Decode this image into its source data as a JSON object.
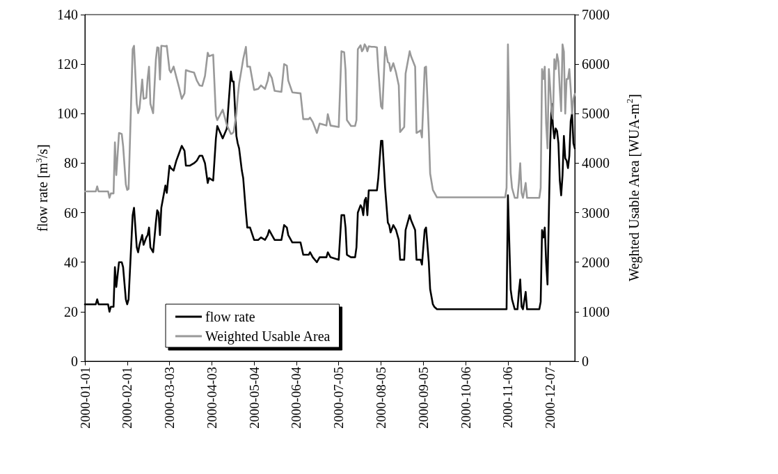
{
  "chart_data": {
    "type": "line",
    "ylabel": "flow rate [m$^{3}$/s]",
    "y2label": "Weghted Usable Area [WUA-m$^{2}$]",
    "x": [
      "2000-01-01",
      "2000-01-09",
      "2000-01-10",
      "2000-01-11",
      "2000-01-18",
      "2000-01-19",
      "2000-01-20",
      "2000-01-22",
      "2000-01-23",
      "2000-01-24",
      "2000-01-26",
      "2000-01-28",
      "2000-01-29",
      "2000-01-31",
      "2000-02-01",
      "2000-02-02",
      "2000-02-05",
      "2000-02-06",
      "2000-02-08",
      "2000-02-09",
      "2000-02-10",
      "2000-02-12",
      "2000-02-13",
      "2000-02-15",
      "2000-02-16",
      "2000-02-17",
      "2000-02-18",
      "2000-02-20",
      "2000-02-22",
      "2000-02-23",
      "2000-02-24",
      "2000-02-25",
      "2000-02-26",
      "2000-02-29",
      "2000-03-01",
      "2000-03-03",
      "2000-03-04",
      "2000-03-06",
      "2000-03-08",
      "2000-03-10",
      "2000-03-12",
      "2000-03-14",
      "2000-03-15",
      "2000-03-18",
      "2000-03-21",
      "2000-03-23",
      "2000-03-25",
      "2000-03-27",
      "2000-03-29",
      "2000-03-31",
      "2000-04-01",
      "2000-04-04",
      "2000-04-06",
      "2000-04-07",
      "2000-04-11",
      "2000-04-14",
      "2000-04-17",
      "2000-04-18",
      "2000-04-19",
      "2000-04-21",
      "2000-04-22",
      "2000-04-23",
      "2000-04-25",
      "2000-04-26",
      "2000-04-28",
      "2000-04-29",
      "2000-05-01",
      "2000-05-04",
      "2000-05-07",
      "2000-05-09",
      "2000-05-12",
      "2000-05-14",
      "2000-05-15",
      "2000-05-17",
      "2000-05-19",
      "2000-05-24",
      "2000-05-26",
      "2000-05-28",
      "2000-05-29",
      "2000-06-01",
      "2000-06-07",
      "2000-06-09",
      "2000-06-13",
      "2000-06-14",
      "2000-06-16",
      "2000-06-19",
      "2000-06-21",
      "2000-06-26",
      "2000-06-27",
      "2000-06-29",
      "2000-07-05",
      "2000-07-07",
      "2000-07-09",
      "2000-07-10",
      "2000-07-11",
      "2000-07-14",
      "2000-07-17",
      "2000-07-18",
      "2000-07-19",
      "2000-07-21",
      "2000-07-22",
      "2000-07-23",
      "2000-07-24",
      "2000-07-25",
      "2000-07-26",
      "2000-07-27",
      "2000-07-29",
      "2000-07-31",
      "2000-08-02",
      "2000-08-03",
      "2000-08-05",
      "2000-08-06",
      "2000-08-08",
      "2000-08-10",
      "2000-08-11",
      "2000-08-12",
      "2000-08-14",
      "2000-08-16",
      "2000-08-18",
      "2000-08-19",
      "2000-08-22",
      "2000-08-23",
      "2000-08-26",
      "2000-08-27",
      "2000-08-30",
      "2000-08-31",
      "2000-09-03",
      "2000-09-04",
      "2000-09-06",
      "2000-09-07",
      "2000-09-09",
      "2000-09-10",
      "2000-09-12",
      "2000-09-13",
      "2000-09-15",
      "2000-11-04",
      "2000-11-05",
      "2000-11-06",
      "2000-11-07",
      "2000-11-08",
      "2000-11-09",
      "2000-11-11",
      "2000-11-13",
      "2000-11-14",
      "2000-11-15",
      "2000-11-16",
      "2000-11-17",
      "2000-11-19",
      "2000-11-20",
      "2000-11-29",
      "2000-11-30",
      "2000-12-01",
      "2000-12-02",
      "2000-12-03",
      "2000-12-04",
      "2000-12-05",
      "2000-12-06",
      "2000-12-07",
      "2000-12-08",
      "2000-12-09",
      "2000-12-10",
      "2000-12-11",
      "2000-12-12",
      "2000-12-13",
      "2000-12-14",
      "2000-12-15",
      "2000-12-16",
      "2000-12-17",
      "2000-12-18",
      "2000-12-19",
      "2000-12-20",
      "2000-12-21",
      "2000-12-22",
      "2000-12-23",
      "2000-12-24",
      "2000-12-25"
    ],
    "series": [
      {
        "name": "flow rate",
        "color": "#000000",
        "values": [
          23,
          23,
          25,
          23,
          23,
          20,
          22,
          22,
          38,
          30,
          40,
          40,
          38,
          25,
          23,
          25,
          59,
          62,
          46,
          44,
          47,
          51,
          47,
          50,
          51,
          54,
          46,
          44,
          56,
          61,
          60,
          51,
          62,
          71,
          68,
          79,
          78,
          77,
          81,
          84,
          87,
          85,
          79,
          79,
          80,
          81,
          83,
          83,
          80,
          72,
          74,
          73,
          90,
          95,
          90,
          94,
          117,
          113,
          113,
          91,
          88,
          86,
          77,
          74,
          60,
          54,
          54,
          49,
          49,
          50,
          49,
          51,
          53,
          51,
          49,
          49,
          55,
          54,
          51,
          48,
          48,
          43,
          43,
          44,
          42,
          40,
          42,
          42,
          44,
          42,
          41,
          59,
          59,
          54,
          43,
          42,
          42,
          46,
          60,
          63,
          62,
          59,
          65,
          66,
          59,
          69,
          69,
          69,
          69,
          74,
          89,
          89,
          70,
          56,
          55,
          52,
          55,
          53,
          49,
          41,
          41,
          53,
          59,
          57,
          53,
          41,
          41,
          39,
          53,
          54,
          40,
          29,
          23,
          22,
          21,
          21,
          21,
          67,
          48,
          29,
          25,
          21,
          21,
          28,
          33,
          22,
          21,
          28,
          21,
          21,
          24,
          53,
          50,
          54,
          40,
          31,
          60,
          88,
          104,
          95,
          90,
          94,
          93,
          88,
          73,
          67,
          75,
          91,
          82,
          81,
          78,
          83,
          97,
          100,
          88,
          86
        ]
      },
      {
        "name": "Weighted Usable Area",
        "color": "#999999",
        "axis": "y2",
        "values": [
          3430,
          3430,
          3530,
          3430,
          3430,
          3300,
          3390,
          3390,
          4420,
          3760,
          4610,
          4590,
          4350,
          3570,
          3460,
          3480,
          6300,
          6370,
          5200,
          5010,
          5100,
          5690,
          5300,
          5320,
          5720,
          5950,
          5200,
          5010,
          6090,
          6340,
          6330,
          5690,
          6370,
          6360,
          6370,
          5880,
          5830,
          5950,
          5740,
          5530,
          5300,
          5410,
          5880,
          5850,
          5830,
          5670,
          5570,
          5560,
          5760,
          6230,
          6160,
          6190,
          4960,
          4870,
          5080,
          4770,
          4590,
          4600,
          4630,
          5000,
          5340,
          5600,
          5930,
          6100,
          6350,
          5950,
          5950,
          5480,
          5500,
          5570,
          5500,
          5670,
          5830,
          5720,
          5460,
          5440,
          6000,
          5970,
          5670,
          5430,
          5410,
          4890,
          4890,
          4920,
          4830,
          4610,
          4800,
          4760,
          4990,
          4760,
          4730,
          6260,
          6240,
          5880,
          4870,
          4750,
          4750,
          4870,
          6300,
          6380,
          6260,
          6300,
          6400,
          6350,
          6260,
          6360,
          6350,
          6350,
          6340,
          5900,
          5150,
          5100,
          6350,
          6040,
          6020,
          5860,
          6020,
          5830,
          5570,
          4630,
          4730,
          5810,
          6260,
          6160,
          5950,
          4610,
          4660,
          4520,
          5930,
          5950,
          4630,
          3790,
          3460,
          3410,
          3310,
          3310,
          3500,
          6400,
          5000,
          3800,
          3500,
          3300,
          3300,
          3600,
          4000,
          3400,
          3300,
          3600,
          3300,
          3300,
          3500,
          5900,
          5700,
          5950,
          4800,
          4300,
          5900,
          5500,
          5050,
          4900,
          6100,
          5900,
          6200,
          6050,
          5500,
          5050,
          6400,
          6250,
          5000,
          5700,
          5700,
          5900,
          5500,
          5000,
          5300,
          5400
        ]
      }
    ],
    "xlim": [
      "2000-01-01",
      "2000-12-25"
    ],
    "xticks": [
      "2000-01-01",
      "2000-02-01",
      "2000-03-03",
      "2000-04-03",
      "2000-05-04",
      "2000-06-04",
      "2000-07-05",
      "2000-08-05",
      "2000-09-05",
      "2000-10-06",
      "2000-11-06",
      "2000-12-07"
    ],
    "ylim": [
      0,
      140
    ],
    "yticks": [
      0,
      20,
      40,
      60,
      80,
      100,
      120,
      140
    ],
    "y2lim": [
      0,
      7000
    ],
    "y2ticks": [
      0,
      1000,
      2000,
      3000,
      4000,
      5000,
      6000,
      7000
    ],
    "legend": "bottom left",
    "marker": "none",
    "line_style": "solid"
  }
}
